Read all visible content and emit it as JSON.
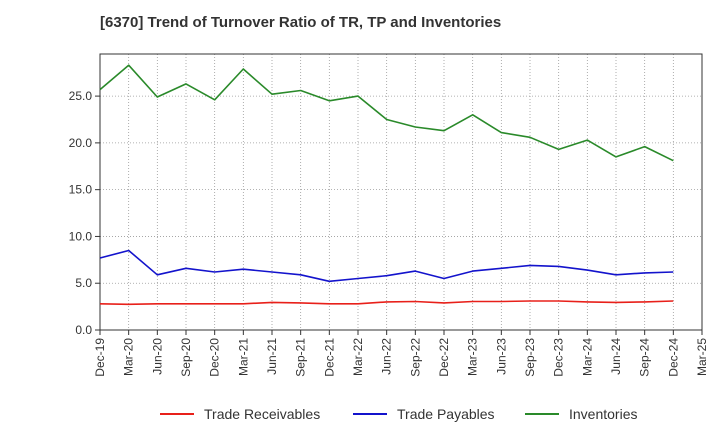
{
  "title": "[6370]  Trend of Turnover Ratio of TR, TP and Inventories",
  "chart_data": {
    "type": "line",
    "title": "[6370]  Trend of Turnover Ratio of TR, TP and Inventories",
    "xlabel": "",
    "ylabel": "",
    "ylim": [
      0,
      29.5
    ],
    "y_ticks": [
      "0.0",
      "5.0",
      "10.0",
      "15.0",
      "20.0",
      "25.0"
    ],
    "x_tick_labels": [
      "Dec-19",
      "Mar-20",
      "Jun-20",
      "Sep-20",
      "Dec-20",
      "Mar-21",
      "Jun-21",
      "Sep-21",
      "Dec-21",
      "Mar-22",
      "Jun-22",
      "Sep-22",
      "Dec-22",
      "Mar-23",
      "Jun-23",
      "Sep-23",
      "Dec-23",
      "Mar-24",
      "Jun-24",
      "Sep-24",
      "Dec-24",
      "Mar-25"
    ],
    "x": [
      "Dec-19",
      "Mar-20",
      "Jun-20",
      "Sep-20",
      "Dec-20",
      "Mar-21",
      "Jun-21",
      "Sep-21",
      "Dec-21",
      "Mar-22",
      "Jun-22",
      "Sep-22",
      "Dec-22",
      "Mar-23",
      "Jun-23",
      "Sep-23",
      "Dec-23",
      "Mar-24",
      "Jun-24",
      "Sep-24",
      "Dec-24"
    ],
    "grid": true,
    "legend_position": "bottom",
    "series": [
      {
        "name": "Trade Receivables",
        "color": "#e8201a",
        "values": [
          2.8,
          2.75,
          2.8,
          2.8,
          2.8,
          2.8,
          2.95,
          2.9,
          2.8,
          2.8,
          3.0,
          3.05,
          2.9,
          3.05,
          3.05,
          3.1,
          3.1,
          3.0,
          2.95,
          3.0,
          3.1
        ]
      },
      {
        "name": "Trade Payables",
        "color": "#1313cc",
        "values": [
          7.7,
          8.5,
          5.9,
          6.6,
          6.2,
          6.5,
          6.2,
          5.9,
          5.2,
          5.5,
          5.8,
          6.3,
          5.5,
          6.3,
          6.6,
          6.9,
          6.8,
          6.4,
          5.9,
          6.1,
          6.2
        ]
      },
      {
        "name": "Inventories",
        "color": "#2a8a2a",
        "values": [
          25.7,
          28.3,
          24.9,
          26.3,
          24.6,
          27.9,
          25.2,
          25.6,
          24.5,
          25.0,
          22.5,
          21.7,
          21.3,
          23.0,
          21.1,
          20.6,
          19.3,
          20.3,
          18.5,
          19.6,
          18.1
        ]
      }
    ]
  }
}
